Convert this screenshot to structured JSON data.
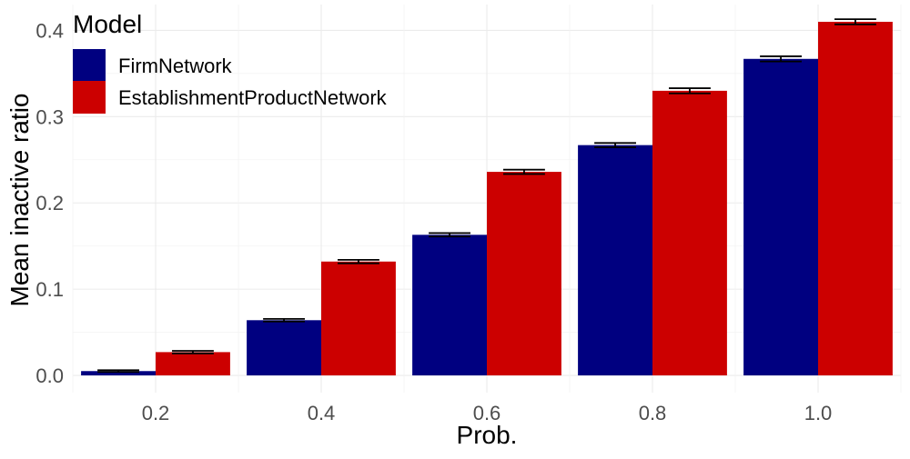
{
  "chart_data": {
    "type": "bar",
    "title": "",
    "xlabel": "Prob.",
    "ylabel": "Mean inactive ratio",
    "categories": [
      "0.2",
      "0.4",
      "0.6",
      "0.8",
      "1.0"
    ],
    "ylim": [
      -0.02,
      0.43
    ],
    "yticks": [
      0.0,
      0.1,
      0.2,
      0.3,
      0.4
    ],
    "ytick_labels": [
      "0.0",
      "0.1",
      "0.2",
      "0.3",
      "0.4"
    ],
    "grid": true,
    "legend": {
      "title": "Model",
      "placement": "top-left"
    },
    "series": [
      {
        "name": "FirmNetwork",
        "color": "#000080",
        "values": [
          0.005,
          0.064,
          0.163,
          0.267,
          0.367
        ],
        "error": [
          0.001,
          0.0015,
          0.002,
          0.0025,
          0.003
        ]
      },
      {
        "name": "EstablishmentProductNetwork",
        "color": "#CC0000",
        "values": [
          0.027,
          0.132,
          0.236,
          0.33,
          0.41
        ],
        "error": [
          0.0015,
          0.002,
          0.0025,
          0.003,
          0.003
        ]
      }
    ]
  }
}
